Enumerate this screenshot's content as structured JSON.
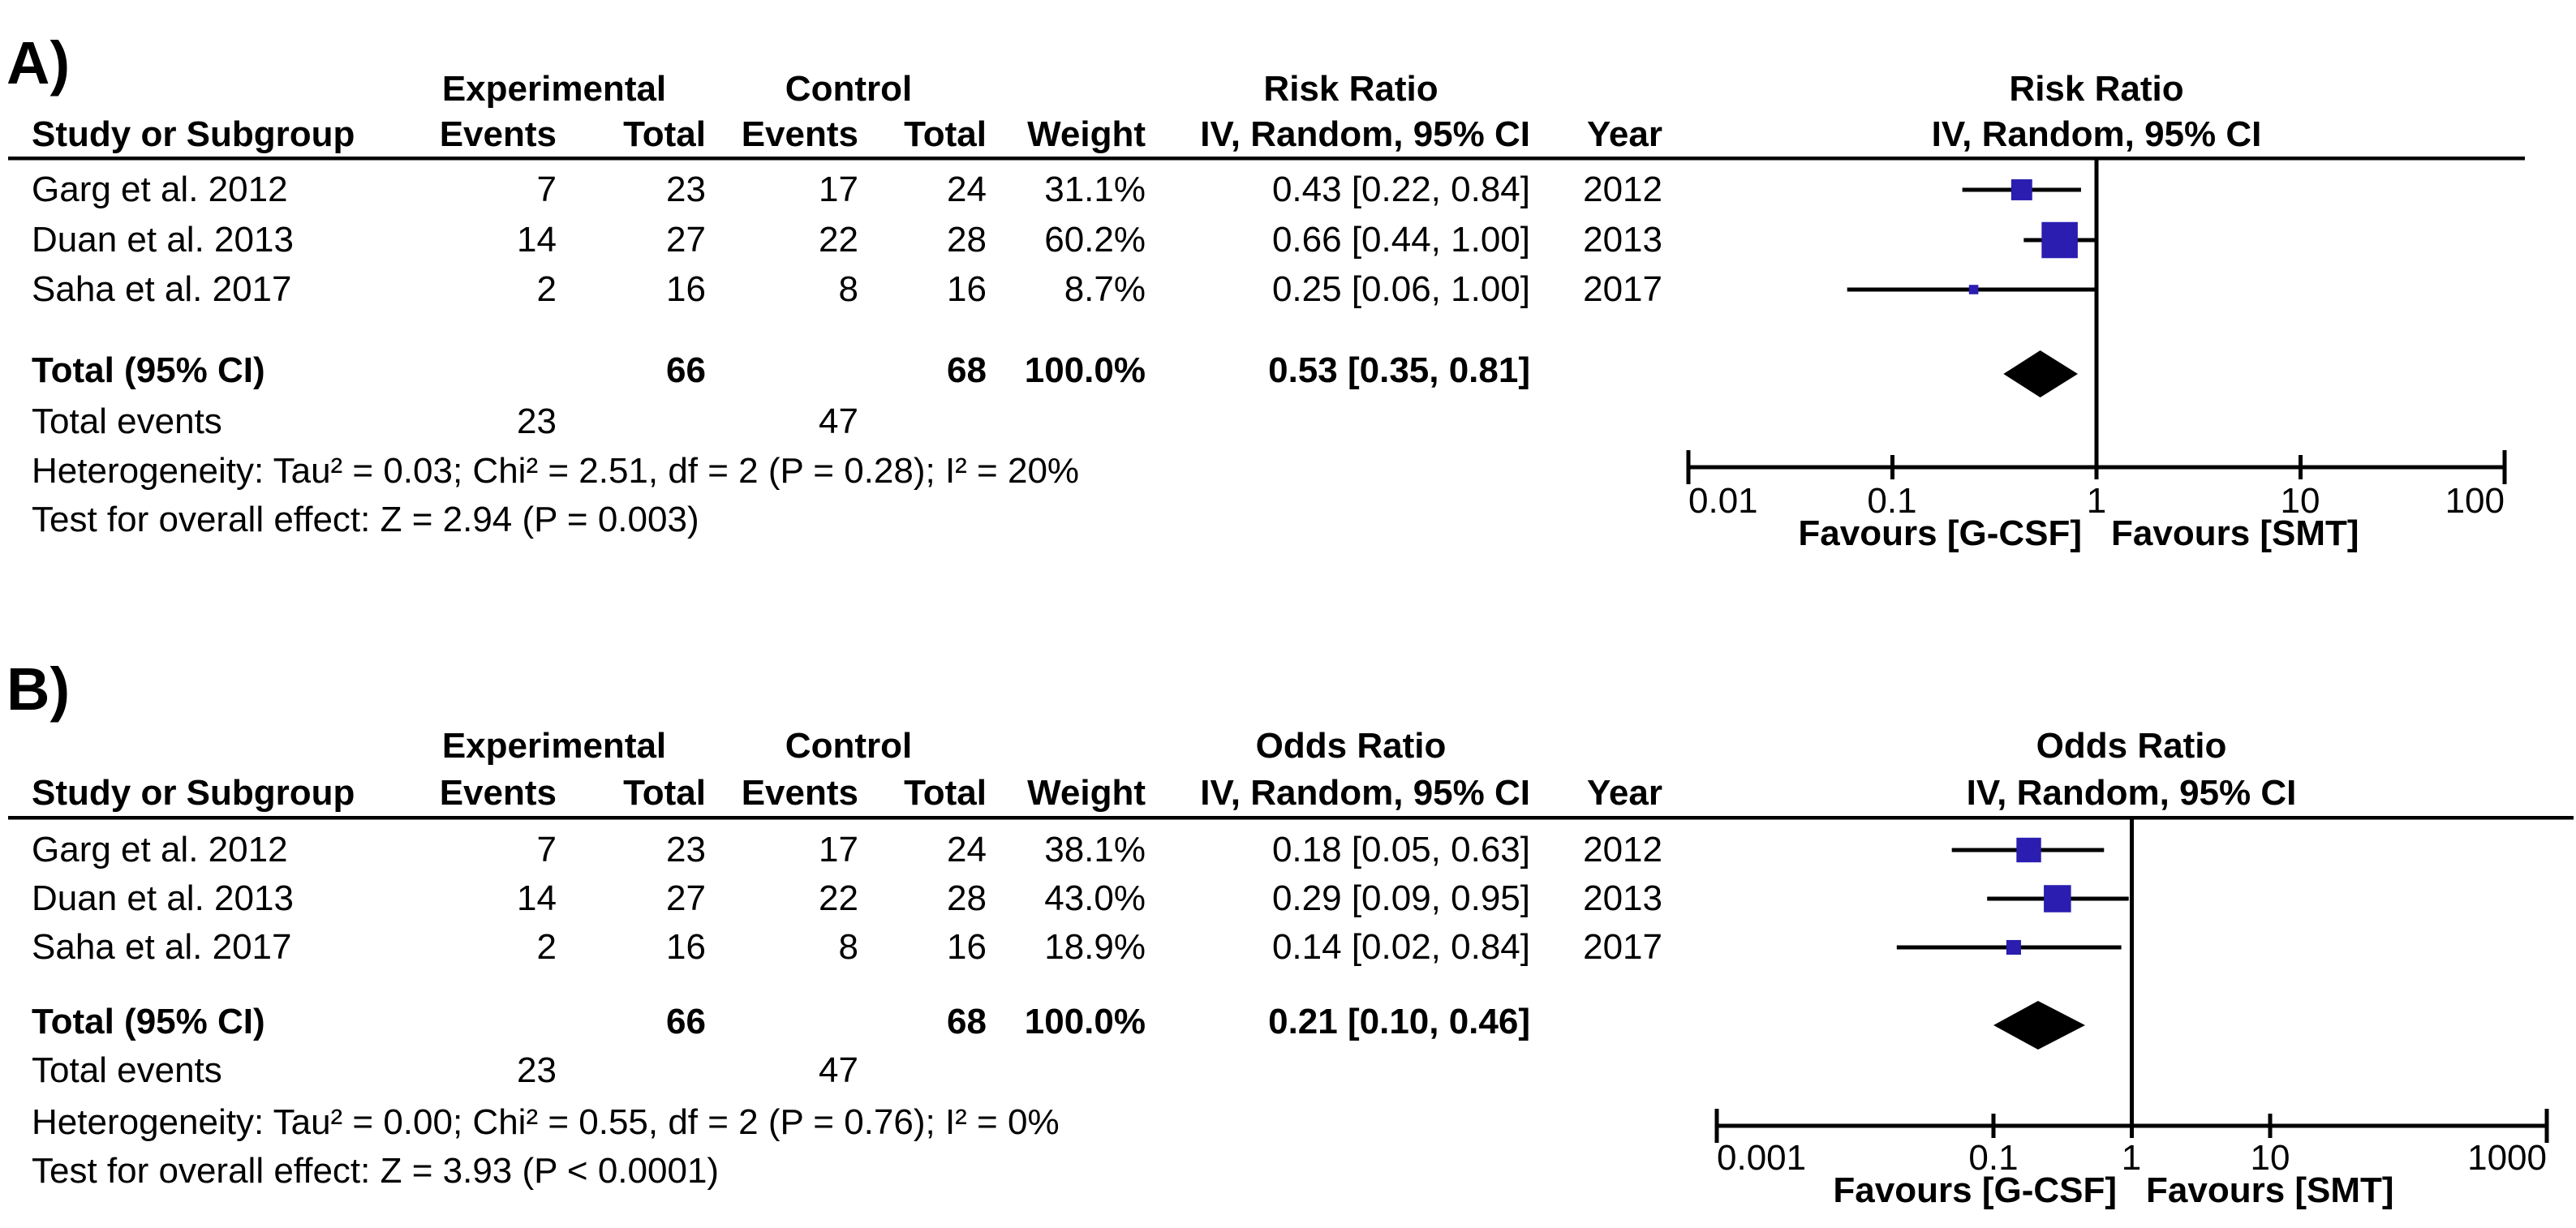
{
  "colors": {
    "marker": "#2a1db0",
    "line": "#000000"
  },
  "chart_data": [
    {
      "type": "scatter",
      "chart_kind": "forest-plot",
      "panel": "A",
      "title": "Risk Ratio",
      "subtitle": "IV, Random, 95% CI",
      "x_scale": "log",
      "xlim": [
        0.01,
        100
      ],
      "null_line": 1,
      "x_ticks": [
        0.01,
        0.1,
        1,
        10,
        100
      ],
      "x_tick_labels": [
        "0.01",
        "0.1",
        "1",
        "10",
        "100"
      ],
      "xlabel_left": "Favours [G-CSF]",
      "xlabel_right": "Favours [SMT]",
      "studies": [
        {
          "name": "Garg et al. 2012",
          "year": 2012,
          "events_exp": 7,
          "total_exp": 23,
          "events_ctl": 17,
          "total_ctl": 24,
          "weight_pct": 31.1,
          "est": 0.43,
          "lo": 0.22,
          "hi": 0.84
        },
        {
          "name": "Duan et al. 2013",
          "year": 2013,
          "events_exp": 14,
          "total_exp": 27,
          "events_ctl": 22,
          "total_ctl": 28,
          "weight_pct": 60.2,
          "est": 0.66,
          "lo": 0.44,
          "hi": 1.0
        },
        {
          "name": "Saha et al. 2017",
          "year": 2017,
          "events_exp": 2,
          "total_exp": 16,
          "events_ctl": 8,
          "total_ctl": 16,
          "weight_pct": 8.7,
          "est": 0.25,
          "lo": 0.06,
          "hi": 1.0
        }
      ],
      "total": {
        "label": "Total (95% CI)",
        "total_exp": 66,
        "total_ctl": 68,
        "weight_pct": 100.0,
        "est": 0.53,
        "lo": 0.35,
        "hi": 0.81,
        "total_events_exp": 23,
        "total_events_ctl": 47
      },
      "heterogeneity": "Heterogeneity: Tau² = 0.03; Chi² = 2.51, df = 2 (P = 0.28); I² = 20%",
      "overall_effect": "Test for overall effect: Z = 2.94 (P = 0.003)"
    },
    {
      "type": "scatter",
      "chart_kind": "forest-plot",
      "panel": "B",
      "title": "Odds Ratio",
      "subtitle": "IV, Random, 95% CI",
      "x_scale": "log",
      "xlim": [
        0.001,
        1000
      ],
      "null_line": 1,
      "x_ticks": [
        0.001,
        0.1,
        1,
        10,
        1000
      ],
      "x_tick_labels": [
        "0.001",
        "0.1",
        "1",
        "10",
        "1000"
      ],
      "xlabel_left": "Favours [G-CSF]",
      "xlabel_right": "Favours [SMT]",
      "studies": [
        {
          "name": "Garg et al. 2012",
          "year": 2012,
          "events_exp": 7,
          "total_exp": 23,
          "events_ctl": 17,
          "total_ctl": 24,
          "weight_pct": 38.1,
          "est": 0.18,
          "lo": 0.05,
          "hi": 0.63
        },
        {
          "name": "Duan et al. 2013",
          "year": 2013,
          "events_exp": 14,
          "total_exp": 27,
          "events_ctl": 22,
          "total_ctl": 28,
          "weight_pct": 43.0,
          "est": 0.29,
          "lo": 0.09,
          "hi": 0.95
        },
        {
          "name": "Saha et al. 2017",
          "year": 2017,
          "events_exp": 2,
          "total_exp": 16,
          "events_ctl": 8,
          "total_ctl": 16,
          "weight_pct": 18.9,
          "est": 0.14,
          "lo": 0.02,
          "hi": 0.84
        }
      ],
      "total": {
        "label": "Total (95% CI)",
        "total_exp": 66,
        "total_ctl": 68,
        "weight_pct": 100.0,
        "est": 0.21,
        "lo": 0.1,
        "hi": 0.46,
        "total_events_exp": 23,
        "total_events_ctl": 47
      },
      "heterogeneity": "Heterogeneity: Tau² = 0.00; Chi² = 0.55, df = 2 (P = 0.76); I² = 0%",
      "overall_effect": "Test for overall effect: Z = 3.93 (P < 0.0001)"
    }
  ],
  "panels": [
    {
      "label": "A)",
      "group1": "Experimental",
      "group2": "Control",
      "effect": "Risk Ratio",
      "method": "IV, Random, 95% CI",
      "headers": {
        "study": "Study or Subgroup",
        "events": "Events",
        "total": "Total",
        "weight": "Weight",
        "year": "Year"
      },
      "rows": [
        {
          "study": "Garg et al. 2012",
          "e1": "7",
          "t1": "23",
          "e2": "17",
          "t2": "24",
          "w": "31.1%",
          "ci": "0.43 [0.22, 0.84]",
          "yr": "2012"
        },
        {
          "study": "Duan et al. 2013",
          "e1": "14",
          "t1": "27",
          "e2": "22",
          "t2": "28",
          "w": "60.2%",
          "ci": "0.66 [0.44, 1.00]",
          "yr": "2013"
        },
        {
          "study": "Saha et al. 2017",
          "e1": "2",
          "t1": "16",
          "e2": "8",
          "t2": "16",
          "w": "8.7%",
          "ci": "0.25 [0.06, 1.00]",
          "yr": "2017"
        }
      ],
      "total": {
        "label": "Total (95% CI)",
        "t1": "66",
        "t2": "68",
        "w": "100.0%",
        "ci": "0.53 [0.35, 0.81]"
      },
      "total_events": {
        "label": "Total events",
        "e1": "23",
        "e2": "47"
      },
      "heterogeneity": "Heterogeneity: Tau² = 0.03; Chi² = 2.51, df = 2 (P = 0.28); I² = 20%",
      "overall_test": "Test for overall effect: Z = 2.94 (P = 0.003)",
      "axis": {
        "labels": [
          "0.01",
          "0.1",
          "1",
          "10",
          "100"
        ],
        "favours_left": "Favours [G-CSF]",
        "favours_right": "Favours [SMT]"
      }
    },
    {
      "label": "B)",
      "group1": "Experimental",
      "group2": "Control",
      "effect": "Odds Ratio",
      "method": "IV, Random, 95% CI",
      "headers": {
        "study": "Study or Subgroup",
        "events": "Events",
        "total": "Total",
        "weight": "Weight",
        "year": "Year"
      },
      "rows": [
        {
          "study": "Garg et al. 2012",
          "e1": "7",
          "t1": "23",
          "e2": "17",
          "t2": "24",
          "w": "38.1%",
          "ci": "0.18 [0.05, 0.63]",
          "yr": "2012"
        },
        {
          "study": "Duan et al. 2013",
          "e1": "14",
          "t1": "27",
          "e2": "22",
          "t2": "28",
          "w": "43.0%",
          "ci": "0.29 [0.09, 0.95]",
          "yr": "2013"
        },
        {
          "study": "Saha et al. 2017",
          "e1": "2",
          "t1": "16",
          "e2": "8",
          "t2": "16",
          "w": "18.9%",
          "ci": "0.14 [0.02, 0.84]",
          "yr": "2017"
        }
      ],
      "total": {
        "label": "Total (95% CI)",
        "t1": "66",
        "t2": "68",
        "w": "100.0%",
        "ci": "0.21 [0.10, 0.46]"
      },
      "total_events": {
        "label": "Total events",
        "e1": "23",
        "e2": "47"
      },
      "heterogeneity": "Heterogeneity: Tau² = 0.00; Chi² = 0.55, df = 2 (P = 0.76); I² = 0%",
      "overall_test": "Test for overall effect: Z = 3.93 (P < 0.0001)",
      "axis": {
        "labels": [
          "0.001",
          "0.1",
          "1",
          "10",
          "1000"
        ],
        "favours_left": "Favours [G-CSF]",
        "favours_right": "Favours [SMT]"
      }
    }
  ]
}
